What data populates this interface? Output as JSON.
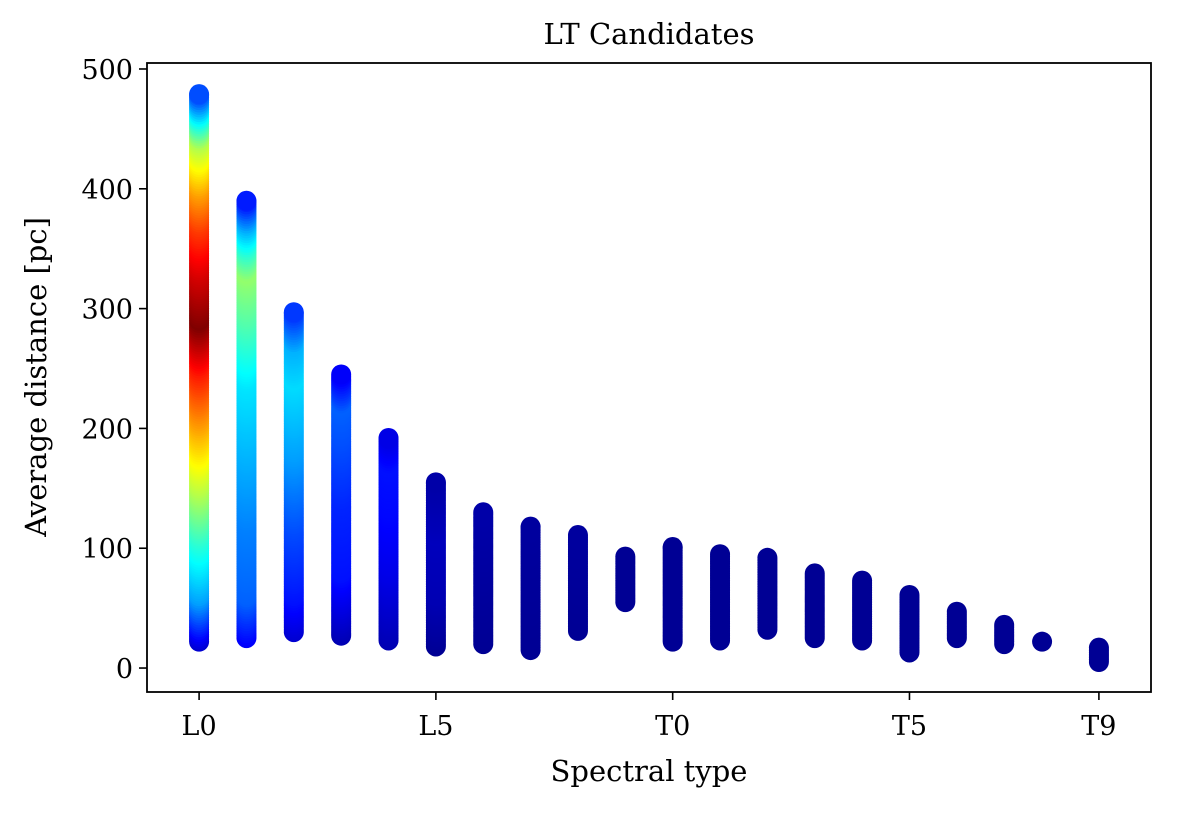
{
  "chart_data": {
    "type": "scatter",
    "title": "LT Candidates",
    "xlabel": "Spectral type",
    "ylabel": "Average distance  [pc]",
    "xlim": [
      -1.1,
      20.1
    ],
    "ylim": [
      -20,
      505
    ],
    "x_ticks": [
      {
        "value": 0,
        "label": "L0"
      },
      {
        "value": 5,
        "label": "L5"
      },
      {
        "value": 10,
        "label": "T0"
      },
      {
        "value": 15,
        "label": "T5"
      },
      {
        "value": 19,
        "label": "T9"
      }
    ],
    "y_ticks": [
      {
        "value": 0,
        "label": "0"
      },
      {
        "value": 100,
        "label": "100"
      },
      {
        "value": 200,
        "label": "200"
      },
      {
        "value": 300,
        "label": "300"
      },
      {
        "value": 400,
        "label": "400"
      },
      {
        "value": 500,
        "label": "500"
      }
    ],
    "grid": false,
    "colormap": "jet",
    "density_max": 1.0,
    "series": [
      {
        "spectral_type": "L0",
        "x": 0,
        "y": [
          22,
          479
        ],
        "density": [
          [
            22,
            0.08
          ],
          [
            60,
            0.28
          ],
          [
            110,
            0.42
          ],
          [
            150,
            0.55
          ],
          [
            200,
            0.7
          ],
          [
            250,
            0.85
          ],
          [
            290,
            1.0
          ],
          [
            330,
            0.92
          ],
          [
            370,
            0.82
          ],
          [
            400,
            0.72
          ],
          [
            440,
            0.55
          ],
          [
            460,
            0.38
          ],
          [
            479,
            0.2
          ]
        ]
      },
      {
        "spectral_type": "L1",
        "x": 1,
        "y": [
          25,
          390
        ],
        "density": [
          [
            25,
            0.12
          ],
          [
            60,
            0.22
          ],
          [
            120,
            0.25
          ],
          [
            180,
            0.3
          ],
          [
            240,
            0.35
          ],
          [
            290,
            0.45
          ],
          [
            330,
            0.52
          ],
          [
            350,
            0.42
          ],
          [
            370,
            0.3
          ],
          [
            390,
            0.15
          ]
        ]
      },
      {
        "spectral_type": "L2",
        "x": 2,
        "y": [
          30,
          297
        ],
        "density": [
          [
            30,
            0.08
          ],
          [
            60,
            0.14
          ],
          [
            120,
            0.2
          ],
          [
            180,
            0.28
          ],
          [
            240,
            0.34
          ],
          [
            270,
            0.3
          ],
          [
            297,
            0.18
          ]
        ]
      },
      {
        "spectral_type": "L3",
        "x": 3,
        "y": [
          27,
          245
        ],
        "density": [
          [
            27,
            0.05
          ],
          [
            80,
            0.14
          ],
          [
            140,
            0.16
          ],
          [
            190,
            0.2
          ],
          [
            220,
            0.22
          ],
          [
            245,
            0.12
          ]
        ]
      },
      {
        "spectral_type": "L4",
        "x": 4,
        "y": [
          23,
          192
        ],
        "density": [
          [
            23,
            0.05
          ],
          [
            80,
            0.1
          ],
          [
            130,
            0.13
          ],
          [
            170,
            0.14
          ],
          [
            192,
            0.1
          ]
        ]
      },
      {
        "spectral_type": "L5",
        "x": 5,
        "y": [
          18,
          155
        ],
        "density": [
          [
            18,
            0.02
          ],
          [
            60,
            0.05
          ],
          [
            110,
            0.06
          ],
          [
            155,
            0.04
          ]
        ]
      },
      {
        "spectral_type": "L6",
        "x": 6,
        "y": [
          20,
          130
        ],
        "density": [
          [
            20,
            0.02
          ],
          [
            130,
            0.04
          ]
        ]
      },
      {
        "spectral_type": "L7",
        "x": 7,
        "y": [
          15,
          118
        ],
        "density": [
          [
            15,
            0.02
          ],
          [
            118,
            0.03
          ]
        ]
      },
      {
        "spectral_type": "L8",
        "x": 8,
        "y": [
          31,
          111
        ],
        "density": [
          [
            31,
            0.02
          ],
          [
            111,
            0.03
          ]
        ]
      },
      {
        "spectral_type": "L9",
        "x": 9,
        "y": [
          55,
          93
        ],
        "density": [
          [
            55,
            0.02
          ],
          [
            93,
            0.02
          ]
        ]
      },
      {
        "spectral_type": "T0",
        "x": 10,
        "y": [
          22,
          101
        ],
        "density": [
          [
            22,
            0.02
          ],
          [
            101,
            0.02
          ]
        ]
      },
      {
        "spectral_type": "T1",
        "x": 11,
        "y": [
          23,
          95
        ],
        "density": [
          [
            23,
            0.02
          ],
          [
            95,
            0.02
          ]
        ]
      },
      {
        "spectral_type": "T2",
        "x": 12,
        "y": [
          32,
          92
        ],
        "density": [
          [
            32,
            0.02
          ],
          [
            92,
            0.02
          ]
        ]
      },
      {
        "spectral_type": "T3",
        "x": 13,
        "y": [
          25,
          79
        ],
        "density": [
          [
            25,
            0.02
          ],
          [
            79,
            0.02
          ]
        ]
      },
      {
        "spectral_type": "T4",
        "x": 14,
        "y": [
          23,
          73
        ],
        "density": [
          [
            23,
            0.02
          ],
          [
            73,
            0.02
          ]
        ]
      },
      {
        "spectral_type": "T5",
        "x": 15,
        "y": [
          13,
          61
        ],
        "density": [
          [
            13,
            0.02
          ],
          [
            61,
            0.02
          ]
        ]
      },
      {
        "spectral_type": "T6",
        "x": 16,
        "y": [
          25,
          47
        ],
        "density": [
          [
            25,
            0.02
          ],
          [
            47,
            0.02
          ]
        ]
      },
      {
        "spectral_type": "T7",
        "x": 17,
        "y": [
          20,
          36
        ],
        "density": [
          [
            20,
            0.02
          ],
          [
            36,
            0.02
          ]
        ]
      },
      {
        "spectral_type": "T8",
        "x": 17.8,
        "y": [
          22,
          22
        ],
        "density": [
          [
            22,
            0.02
          ],
          [
            22,
            0.02
          ]
        ]
      },
      {
        "spectral_type": "T9",
        "x": 19,
        "y": [
          5,
          17
        ],
        "density": [
          [
            5,
            0.02
          ],
          [
            17,
            0.02
          ]
        ]
      }
    ]
  }
}
